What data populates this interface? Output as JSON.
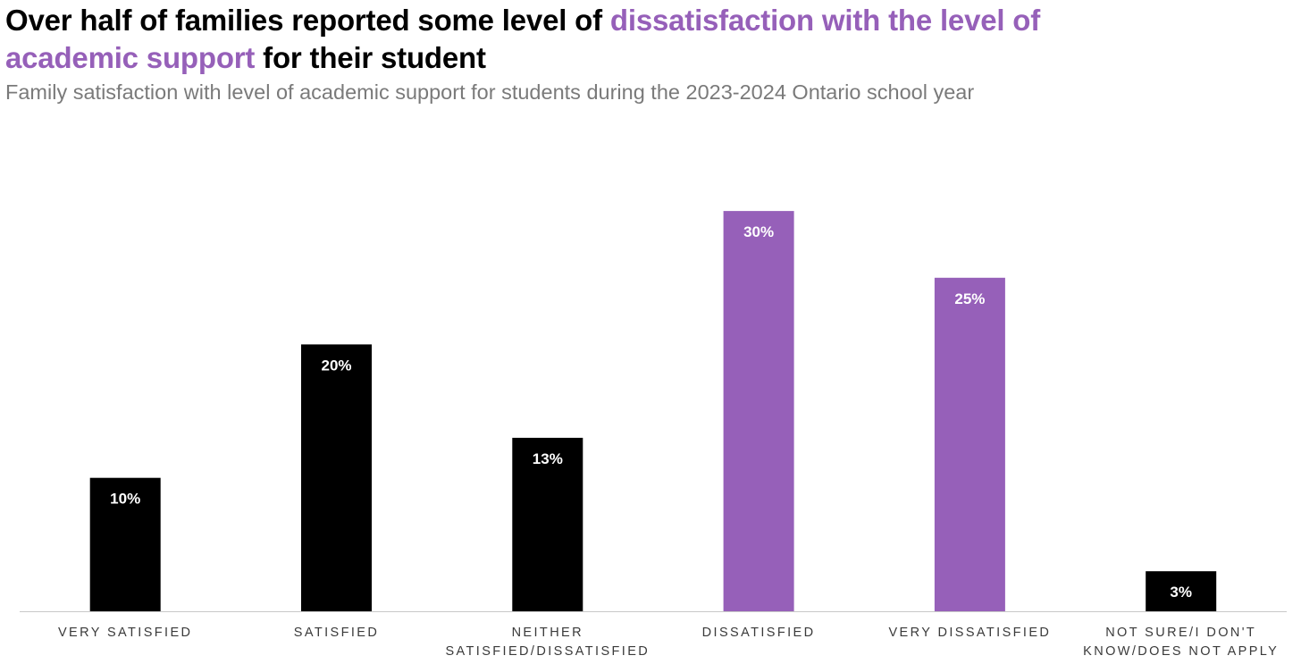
{
  "title": {
    "part1": "Over half of families reported some level of ",
    "highlight1": "dissatisfaction with the level of",
    "highlight2": "academic support",
    "part2": " for their student"
  },
  "subtitle": "Family satisfaction with level of academic support for students during the 2023-2024 Ontario school year",
  "colors": {
    "default_bar": "#000000",
    "highlight_bar": "#9660b9",
    "axis": "#c8c8c8"
  },
  "chart_data": {
    "type": "bar",
    "title": "Over half of families reported some level of dissatisfaction with the level of academic support for their student",
    "subtitle": "Family satisfaction with level of academic support for students during the 2023-2024 Ontario school year",
    "categories": [
      [
        "VERY SATISFIED"
      ],
      [
        "SATISFIED"
      ],
      [
        "NEITHER",
        "SATISFIED/DISSATISFIED"
      ],
      [
        "DISSATISFIED"
      ],
      [
        "VERY DISSATISFIED"
      ],
      [
        "NOT SURE/I DON'T",
        "KNOW/DOES NOT APPLY"
      ]
    ],
    "values": [
      10,
      20,
      13,
      30,
      25,
      3
    ],
    "value_labels": [
      "10%",
      "20%",
      "13%",
      "30%",
      "25%",
      "3%"
    ],
    "highlighted": [
      false,
      false,
      false,
      true,
      true,
      false
    ],
    "xlabel": "",
    "ylabel": "",
    "ylim": [
      0,
      30
    ],
    "grid": false,
    "legend": "none"
  }
}
